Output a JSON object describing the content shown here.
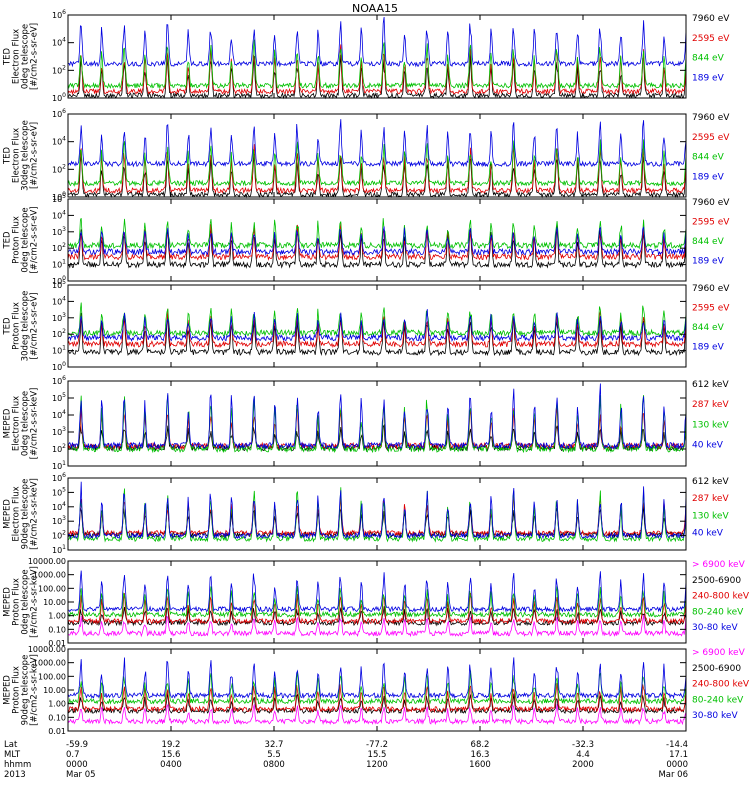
{
  "figure": {
    "title": "NOAA15",
    "date_label": "2013"
  },
  "chart_data": [
    {
      "type": "line",
      "scale": "log",
      "ylabel": [
        "TED",
        "Electron Flux",
        "0deg telescope",
        "[#/cm2-s-sr-eV]"
      ],
      "ylim": [
        1,
        1000000
      ],
      "yticks": [
        {
          "v": 1,
          "label": "10^0"
        },
        {
          "v": 100,
          "label": "10^2"
        },
        {
          "v": 10000,
          "label": "10^4"
        },
        {
          "v": 1000000,
          "label": "10^6"
        }
      ],
      "series": [
        {
          "name": "7960 eV",
          "color": "#000000",
          "base": 1.5,
          "peak": 2000
        },
        {
          "name": "2595 eV",
          "color": "#e00000",
          "base": 3,
          "peak": 8000
        },
        {
          "name": "844 eV",
          "color": "#00c000",
          "base": 8,
          "peak": 20000
        },
        {
          "name": "189 eV",
          "color": "#0000e0",
          "base": 300,
          "peak": 800000
        }
      ]
    },
    {
      "type": "line",
      "scale": "log",
      "ylabel": [
        "TED",
        "Electron Flux",
        "30deg telescope",
        "[#/cm2-s-sr-eV]"
      ],
      "ylim": [
        1,
        1000000
      ],
      "yticks": [
        {
          "v": 1,
          "label": "10^0"
        },
        {
          "v": 100,
          "label": "10^2"
        },
        {
          "v": 10000,
          "label": "10^4"
        },
        {
          "v": 1000000,
          "label": "10^6"
        }
      ],
      "series": [
        {
          "name": "7960 eV",
          "color": "#000000",
          "base": 1.5,
          "peak": 2000
        },
        {
          "name": "2595 eV",
          "color": "#e00000",
          "base": 3,
          "peak": 8000
        },
        {
          "name": "844 eV",
          "color": "#00c000",
          "base": 10,
          "peak": 20000
        },
        {
          "name": "189 eV",
          "color": "#0000e0",
          "base": 250,
          "peak": 700000
        }
      ]
    },
    {
      "type": "line",
      "scale": "log",
      "ylabel": [
        "TED",
        "Proton Flux",
        "0deg telescope",
        "[#/cm2-s-sr-eV]"
      ],
      "ylim": [
        1,
        100000
      ],
      "yticks": [
        {
          "v": 1,
          "label": "10^0"
        },
        {
          "v": 10,
          "label": "10^1"
        },
        {
          "v": 100,
          "label": "10^2"
        },
        {
          "v": 1000,
          "label": "10^3"
        },
        {
          "v": 10000,
          "label": "10^4"
        },
        {
          "v": 100000,
          "label": "10^5"
        }
      ],
      "series": [
        {
          "name": "7960 eV",
          "color": "#000000",
          "base": 10,
          "peak": 3000
        },
        {
          "name": "2595 eV",
          "color": "#e00000",
          "base": 30,
          "peak": 3000
        },
        {
          "name": "844 eV",
          "color": "#00c000",
          "base": 150,
          "peak": 10000
        },
        {
          "name": "189 eV",
          "color": "#0000e0",
          "base": 60,
          "peak": 3000
        }
      ]
    },
    {
      "type": "line",
      "scale": "log",
      "ylabel": [
        "TED",
        "Proton Flux",
        "30deg telescope",
        "[#/cm2-s-sr-eV]"
      ],
      "ylim": [
        1,
        100000
      ],
      "yticks": [
        {
          "v": 1,
          "label": "10^0"
        },
        {
          "v": 10,
          "label": "10^1"
        },
        {
          "v": 100,
          "label": "10^2"
        },
        {
          "v": 1000,
          "label": "10^3"
        },
        {
          "v": 10000,
          "label": "10^4"
        },
        {
          "v": 100000,
          "label": "10^5"
        }
      ],
      "series": [
        {
          "name": "7960 eV",
          "color": "#000000",
          "base": 8,
          "peak": 3000
        },
        {
          "name": "2595 eV",
          "color": "#e00000",
          "base": 25,
          "peak": 3000
        },
        {
          "name": "844 eV",
          "color": "#00c000",
          "base": 120,
          "peak": 8000
        },
        {
          "name": "189 eV",
          "color": "#0000e0",
          "base": 60,
          "peak": 3000
        }
      ]
    },
    {
      "type": "line",
      "scale": "log",
      "ylabel": [
        "MEPED",
        "Electron Flux",
        "0deg telescope",
        "[#/cm2-s-sr-keV]"
      ],
      "ylim": [
        10,
        1000000
      ],
      "yticks": [
        {
          "v": 10,
          "label": "10^1"
        },
        {
          "v": 100,
          "label": "10^2"
        },
        {
          "v": 1000,
          "label": "10^3"
        },
        {
          "v": 10000,
          "label": "10^4"
        },
        {
          "v": 100000,
          "label": "10^5"
        },
        {
          "v": 1000000,
          "label": "10^6"
        }
      ],
      "series": [
        {
          "name": "612 keV",
          "color": "#000000",
          "base": 120,
          "peak": 3000
        },
        {
          "name": "287 keV",
          "color": "#e00000",
          "base": 150,
          "peak": 50000
        },
        {
          "name": "130 keV",
          "color": "#00c000",
          "base": 100,
          "peak": 300000
        },
        {
          "name": "40 keV",
          "color": "#0000e0",
          "base": 160,
          "peak": 800000
        }
      ]
    },
    {
      "type": "line",
      "scale": "log",
      "ylabel": [
        "MEPED",
        "Electron Flux",
        "90deg telescope",
        "[#/cm2-s-sr-keV]"
      ],
      "ylim": [
        10,
        1000000
      ],
      "yticks": [
        {
          "v": 10,
          "label": "10^1"
        },
        {
          "v": 100,
          "label": "10^2"
        },
        {
          "v": 1000,
          "label": "10^3"
        },
        {
          "v": 10000,
          "label": "10^4"
        },
        {
          "v": 100000,
          "label": "10^5"
        },
        {
          "v": 1000000,
          "label": "10^6"
        }
      ],
      "series": [
        {
          "name": "612 keV",
          "color": "#000000",
          "base": 120,
          "peak": 20000
        },
        {
          "name": "287 keV",
          "color": "#e00000",
          "base": 150,
          "peak": 100000
        },
        {
          "name": "130 keV",
          "color": "#00c000",
          "base": 60,
          "peak": 300000
        },
        {
          "name": "40 keV",
          "color": "#0000e0",
          "base": 100,
          "peak": 500000
        }
      ]
    },
    {
      "type": "line",
      "scale": "log",
      "ylabel": [
        "MEPED",
        "Proton Flux",
        "0deg telescope",
        "[#/cm2-s-sr-keV]"
      ],
      "ylim": [
        0.01,
        10000
      ],
      "yticks": [
        {
          "v": 0.01,
          "label": "0.01"
        },
        {
          "v": 0.1,
          "label": "0.10"
        },
        {
          "v": 1,
          "label": "1.00"
        },
        {
          "v": 10,
          "label": "10.00"
        },
        {
          "v": 100,
          "label": "100.00"
        },
        {
          "v": 1000,
          "label": "1000.00"
        },
        {
          "v": 10000,
          "label": "10000.00"
        }
      ],
      "series": [
        {
          "name": "> 6900 keV",
          "color": "#ff00ff",
          "base": 0.05,
          "peak": 1.2
        },
        {
          "name": "2500-6900",
          "color": "#000000",
          "base": 0.3,
          "peak": 5
        },
        {
          "name": "240-800 keV",
          "color": "#e00000",
          "base": 0.4,
          "peak": 50
        },
        {
          "name": "80-240 keV",
          "color": "#00c000",
          "base": 1.2,
          "peak": 200
        },
        {
          "name": "30-80 keV",
          "color": "#0000e0",
          "base": 3,
          "peak": 3000
        }
      ]
    },
    {
      "type": "line",
      "scale": "log",
      "ylabel": [
        "MEPED",
        "Proton Flux",
        "90deg telescope",
        "[#/cm2-s-sr-keV]"
      ],
      "ylim": [
        0.01,
        10000
      ],
      "yticks": [
        {
          "v": 0.01,
          "label": "0.01"
        },
        {
          "v": 0.1,
          "label": "0.10"
        },
        {
          "v": 1,
          "label": "1.00"
        },
        {
          "v": 10,
          "label": "10.00"
        },
        {
          "v": 100,
          "label": "100.00"
        },
        {
          "v": 1000,
          "label": "1000.00"
        },
        {
          "v": 10000,
          "label": "10000.00"
        }
      ],
      "series": [
        {
          "name": "> 6900 keV",
          "color": "#ff00ff",
          "base": 0.05,
          "peak": 1.2
        },
        {
          "name": "2500-6900",
          "color": "#000000",
          "base": 0.3,
          "peak": 5
        },
        {
          "name": "240-800 keV",
          "color": "#e00000",
          "base": 0.4,
          "peak": 50
        },
        {
          "name": "80-240 keV",
          "color": "#00c000",
          "base": 1.5,
          "peak": 300
        },
        {
          "name": "30-80 keV",
          "color": "#0000e0",
          "base": 4,
          "peak": 3000
        }
      ]
    }
  ],
  "x_axis": {
    "row_labels": [
      "Lat",
      "MLT",
      "hhmm",
      "2013"
    ],
    "ticks": [
      {
        "hours": 0,
        "lat": "-59.9",
        "mlt": "0.7",
        "hhmm": "0000",
        "date": "Mar 05"
      },
      {
        "hours": 4,
        "lat": "19.2",
        "mlt": "15.6",
        "hhmm": "0400",
        "date": ""
      },
      {
        "hours": 8,
        "lat": "32.7",
        "mlt": "5.5",
        "hhmm": "0800",
        "date": ""
      },
      {
        "hours": 12,
        "lat": "-77.2",
        "mlt": "15.5",
        "hhmm": "1200",
        "date": ""
      },
      {
        "hours": 16,
        "lat": "68.2",
        "mlt": "16.3",
        "hhmm": "1600",
        "date": ""
      },
      {
        "hours": 20,
        "lat": "-32.3",
        "mlt": "4.4",
        "hhmm": "2000",
        "date": ""
      },
      {
        "hours": 24,
        "lat": "-14.4",
        "mlt": "17.1",
        "hhmm": "0000",
        "date": "Mar 06"
      }
    ],
    "range_hours": [
      0,
      24
    ]
  }
}
